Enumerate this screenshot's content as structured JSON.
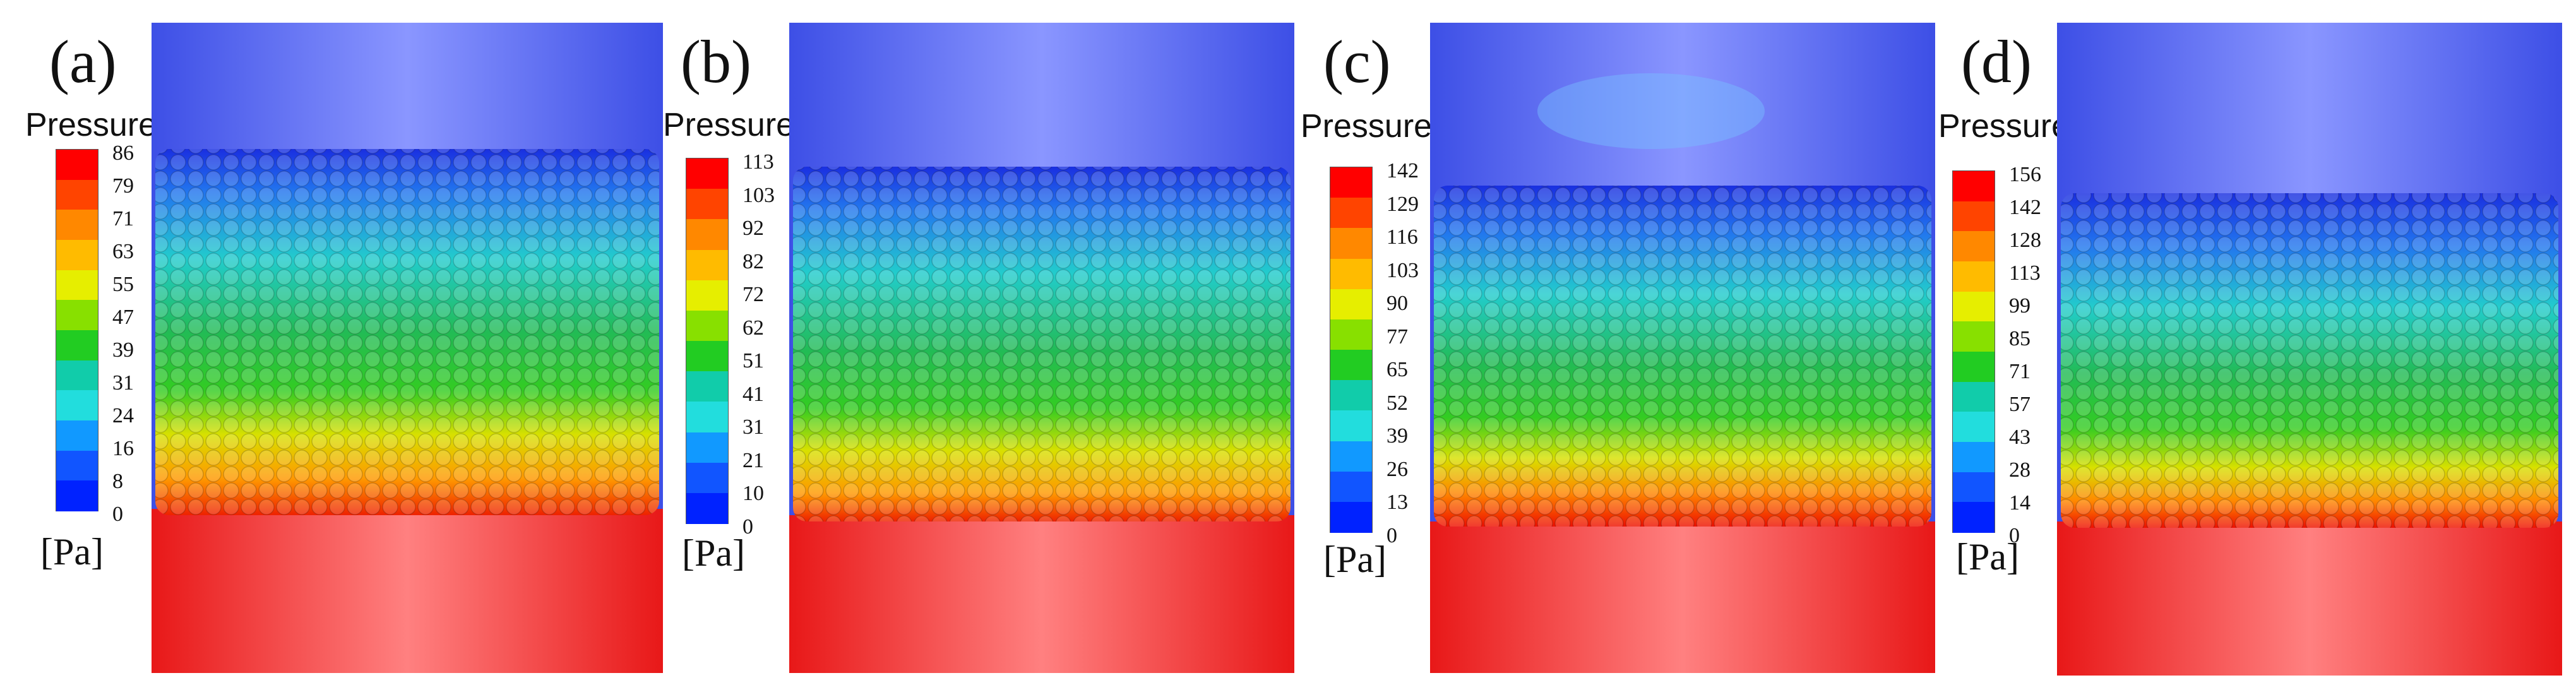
{
  "figure": {
    "panels": [
      {
        "id": "a",
        "label": "(a)",
        "legend_title": "Pressure",
        "unit": "[Pa]",
        "ticks": [
          "86",
          "79",
          "71",
          "63",
          "55",
          "47",
          "39",
          "31",
          "24",
          "16",
          "8",
          "0"
        ]
      },
      {
        "id": "b",
        "label": "(b)",
        "legend_title": "Pressure",
        "unit": "[Pa]",
        "ticks": [
          "113",
          "103",
          "92",
          "82",
          "72",
          "62",
          "51",
          "41",
          "31",
          "21",
          "10",
          "0"
        ]
      },
      {
        "id": "c",
        "label": "(c)",
        "legend_title": "Pressure",
        "unit": "[Pa]",
        "ticks": [
          "142",
          "129",
          "116",
          "103",
          "90",
          "77",
          "65",
          "52",
          "39",
          "26",
          "13",
          "0"
        ]
      },
      {
        "id": "d",
        "label": "(d)",
        "legend_title": "Pressure",
        "unit": "[Pa]",
        "ticks": [
          "156",
          "142",
          "128",
          "113",
          "99",
          "85",
          "71",
          "57",
          "43",
          "28",
          "14",
          "0"
        ]
      }
    ],
    "colormap": [
      "#ff0000",
      "#ff4400",
      "#ff8800",
      "#ffbb00",
      "#e6ee00",
      "#88e000",
      "#22cc22",
      "#11ccaa",
      "#22dddd",
      "#1199ff",
      "#1155ff",
      "#0022ff"
    ]
  }
}
